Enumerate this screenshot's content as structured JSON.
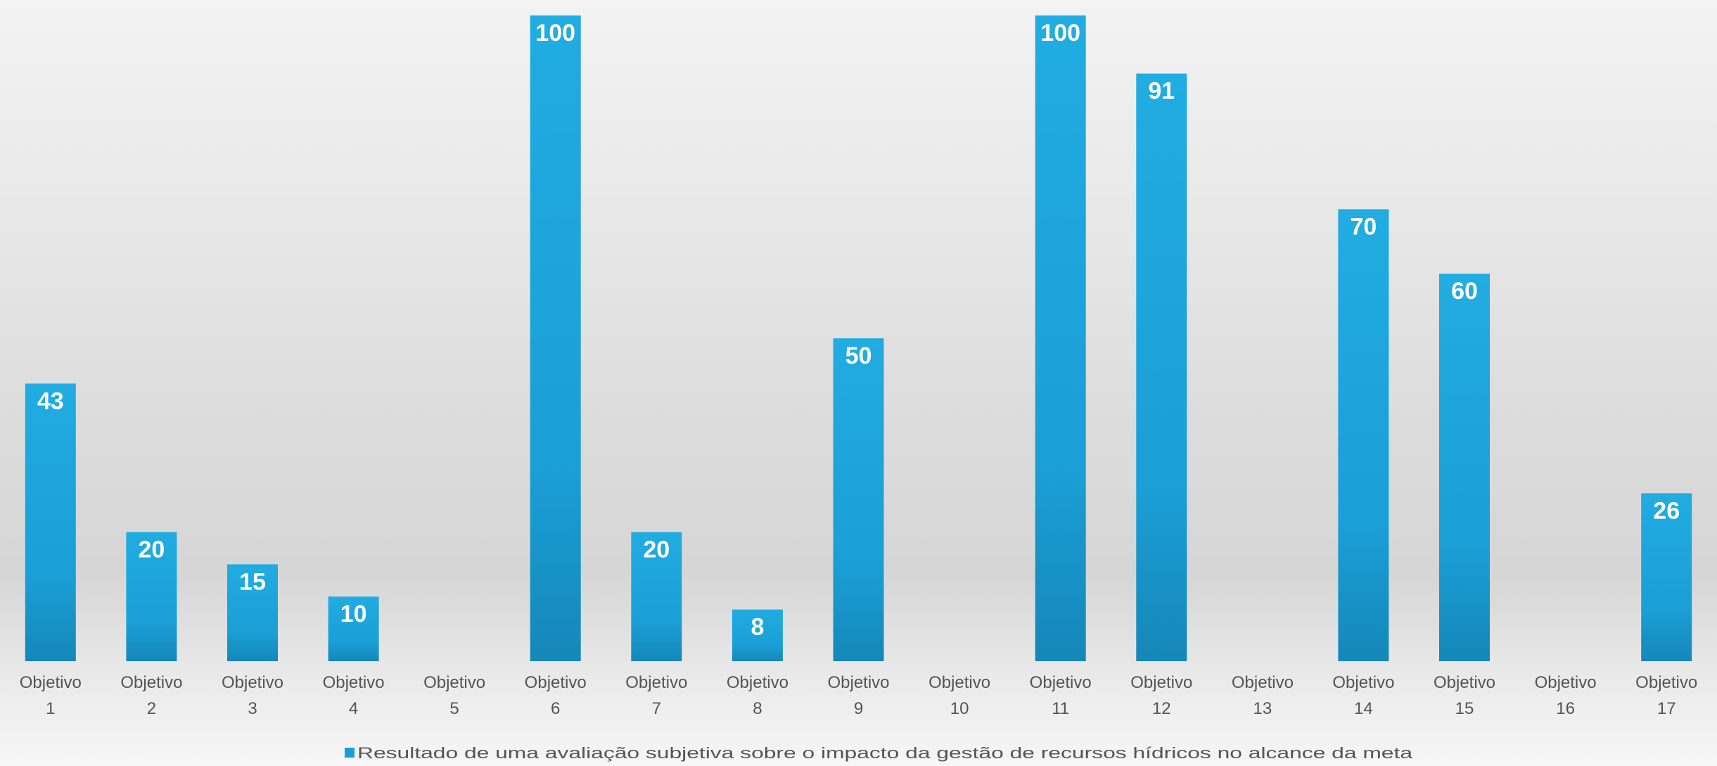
{
  "chart_data": {
    "type": "bar",
    "categories": [
      [
        "Objetivo",
        "1"
      ],
      [
        "Objetivo",
        "2"
      ],
      [
        "Objetivo",
        "3"
      ],
      [
        "Objetivo",
        "4"
      ],
      [
        "Objetivo",
        "5"
      ],
      [
        "Objetivo",
        "6"
      ],
      [
        "Objetivo",
        "7"
      ],
      [
        "Objetivo",
        "8"
      ],
      [
        "Objetivo",
        "9"
      ],
      [
        "Objetivo",
        "10"
      ],
      [
        "Objetivo",
        "11"
      ],
      [
        "Objetivo",
        "12"
      ],
      [
        "Objetivo",
        "13"
      ],
      [
        "Objetivo",
        "14"
      ],
      [
        "Objetivo",
        "15"
      ],
      [
        "Objetivo",
        "16"
      ],
      [
        "Objetivo",
        "17"
      ]
    ],
    "series": [
      {
        "name": "Resultado de uma avaliação subjetiva sobre o impacto da gestão de recursos hídricos no alcance da meta",
        "values": [
          43,
          20,
          15,
          10,
          null,
          100,
          20,
          8,
          50,
          null,
          100,
          91,
          null,
          70,
          60,
          null,
          26
        ],
        "color": "#1a9fd6"
      }
    ],
    "ylim": [
      0,
      100
    ],
    "grid": false,
    "legend_position": "bottom",
    "data_labels": true
  }
}
